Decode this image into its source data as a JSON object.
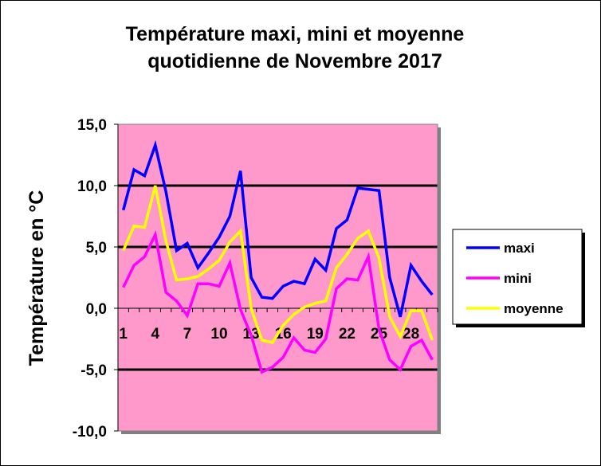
{
  "chart_data": {
    "type": "line",
    "title_line1": "Température maxi, mini et moyenne",
    "title_line2": "quotidienne de Novembre 2017",
    "xlabel": "",
    "ylabel": "Température en °C",
    "ylim": [
      -10,
      15
    ],
    "y_ticks": [
      "15,0",
      "10,0",
      "5,0",
      "0,0",
      "-5,0",
      "-10,0"
    ],
    "x_ticks": [
      "1",
      "4",
      "7",
      "10",
      "13",
      "16",
      "19",
      "22",
      "25",
      "28"
    ],
    "x": [
      1,
      2,
      3,
      4,
      5,
      6,
      7,
      8,
      9,
      10,
      11,
      12,
      13,
      14,
      15,
      16,
      17,
      18,
      19,
      20,
      21,
      22,
      23,
      24,
      25,
      26,
      27,
      28,
      29,
      30
    ],
    "plot_background": "#ff99cc",
    "grid": "horizontal major lines at 10, 5, -5",
    "legend_position": "right",
    "series": [
      {
        "name": "maxi",
        "color": "#0000ff",
        "values": [
          8.0,
          11.3,
          10.8,
          13.3,
          9.5,
          4.7,
          5.3,
          3.3,
          4.5,
          5.8,
          7.5,
          11.2,
          2.5,
          0.9,
          0.8,
          1.8,
          2.2,
          2.0,
          4.0,
          3.1,
          6.5,
          7.2,
          9.8,
          9.7,
          9.6,
          2.5,
          -0.7,
          3.5,
          2.2,
          1.1
        ]
      },
      {
        "name": "mini",
        "color": "#ff00ff",
        "values": [
          1.7,
          3.5,
          4.2,
          6.0,
          1.3,
          0.6,
          -0.6,
          2.0,
          2.0,
          1.8,
          3.7,
          -0.1,
          -2.2,
          -5.2,
          -4.8,
          -4.0,
          -2.4,
          -3.4,
          -3.6,
          -2.5,
          1.6,
          2.4,
          2.3,
          4.2,
          -1.7,
          -4.2,
          -5.0,
          -3.1,
          -2.6,
          -4.2
        ]
      },
      {
        "name": "moyenne",
        "color": "#ffff00",
        "values": [
          4.7,
          6.7,
          6.6,
          10.0,
          5.5,
          2.3,
          2.4,
          2.6,
          3.2,
          3.9,
          5.4,
          6.3,
          0.0,
          -2.6,
          -2.8,
          -1.4,
          -0.5,
          0.1,
          0.4,
          0.6,
          3.3,
          4.4,
          5.7,
          6.3,
          4.1,
          -0.7,
          -2.3,
          -0.2,
          -0.2,
          -2.6
        ]
      }
    ]
  }
}
